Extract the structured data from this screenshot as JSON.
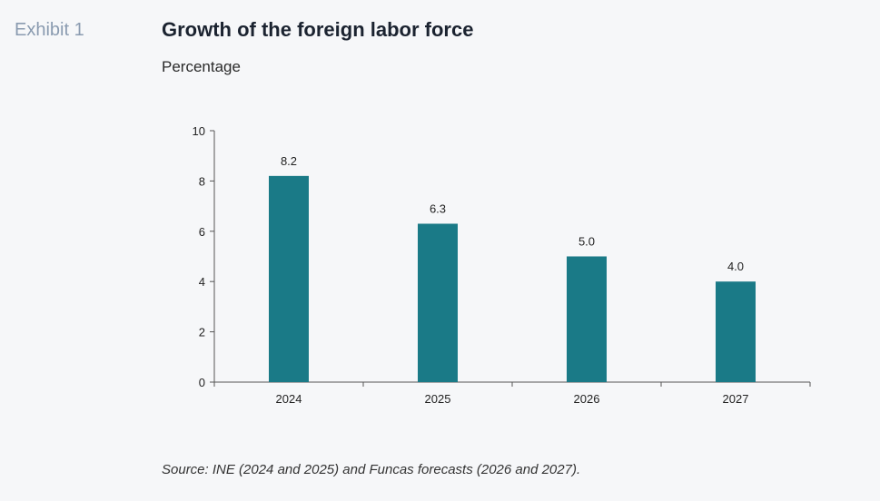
{
  "header": {
    "exhibit_label": "Exhibit 1",
    "title": "Growth of the foreign labor force",
    "subtitle": "Percentage"
  },
  "footer": {
    "source": "Source: INE (2024 and 2025) and Funcas forecasts (2026 and 2027)."
  },
  "colors": {
    "bar": "#1a7a87",
    "axis": "#555555",
    "background": "#f6f7f9"
  },
  "chart_data": {
    "type": "bar",
    "title": "Growth of the foreign labor force",
    "subtitle": "Percentage",
    "categories": [
      "2024",
      "2025",
      "2026",
      "2027"
    ],
    "values": [
      8.2,
      6.3,
      5.0,
      4.0
    ],
    "value_labels": [
      "8.2",
      "6.3",
      "5.0",
      "4.0"
    ],
    "ylim": [
      0,
      10
    ],
    "yticks": [
      0,
      2,
      4,
      6,
      8,
      10
    ],
    "grid": false,
    "legend": "none"
  }
}
